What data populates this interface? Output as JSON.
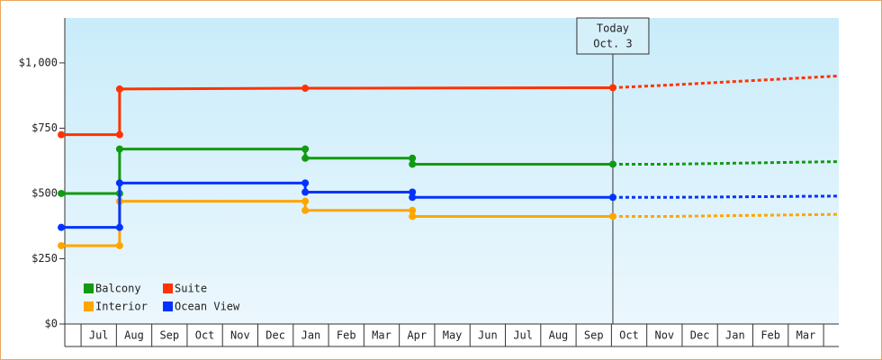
{
  "chart_data": {
    "type": "line",
    "step": true,
    "xlim": [
      -0.46,
      21.43
    ],
    "ylim": [
      0,
      1172
    ],
    "yticks": [
      {
        "value": 0,
        "label": "$0"
      },
      {
        "value": 250,
        "label": "$250"
      },
      {
        "value": 500,
        "label": "$500"
      },
      {
        "value": 750,
        "label": "$750"
      },
      {
        "value": 1000,
        "label": "$1,000"
      }
    ],
    "xticks": [
      {
        "value": 0.5,
        "label": "Jul"
      },
      {
        "value": 1.5,
        "label": "Aug"
      },
      {
        "value": 2.5,
        "label": "Sep"
      },
      {
        "value": 3.5,
        "label": "Oct"
      },
      {
        "value": 4.5,
        "label": "Nov"
      },
      {
        "value": 5.5,
        "label": "Dec"
      },
      {
        "value": 6.5,
        "label": "Jan"
      },
      {
        "value": 7.5,
        "label": "Feb"
      },
      {
        "value": 8.5,
        "label": "Mar"
      },
      {
        "value": 9.5,
        "label": "Apr"
      },
      {
        "value": 10.5,
        "label": "May"
      },
      {
        "value": 11.5,
        "label": "Jun"
      },
      {
        "value": 12.5,
        "label": "Jul"
      },
      {
        "value": 13.5,
        "label": "Aug"
      },
      {
        "value": 14.5,
        "label": "Sep"
      },
      {
        "value": 15.5,
        "label": "Oct"
      },
      {
        "value": 16.5,
        "label": "Nov"
      },
      {
        "value": 17.5,
        "label": "Dec"
      },
      {
        "value": 18.5,
        "label": "Jan"
      },
      {
        "value": 19.5,
        "label": "Feb"
      },
      {
        "value": 20.5,
        "label": "Mar"
      }
    ],
    "today": {
      "x": 15.04,
      "label": [
        "Today",
        "Oct. 3"
      ]
    },
    "series": [
      {
        "name": "Balcony",
        "color": "#129a12",
        "x": [
          -0.56,
          1.09,
          1.09,
          6.34,
          6.34,
          9.37,
          9.37,
          15.04
        ],
        "values": [
          500,
          500,
          670,
          670,
          635,
          635,
          612,
          612
        ],
        "projection": {
          "x": [
            15.04,
            16.6,
            21.43
          ],
          "values": [
            612,
            612,
            622
          ]
        }
      },
      {
        "name": "Suite",
        "color": "#ff3300",
        "x": [
          -0.56,
          1.09,
          1.09,
          6.34,
          15.04
        ],
        "values": [
          725,
          725,
          900,
          903,
          905
        ],
        "projection": {
          "x": [
            15.04,
            16.6,
            21.43
          ],
          "values": [
            905,
            915,
            950
          ]
        }
      },
      {
        "name": "Interior",
        "color": "#ffa500",
        "x": [
          -0.56,
          1.09,
          1.09,
          6.34,
          6.34,
          9.37,
          9.37,
          15.04
        ],
        "values": [
          300,
          300,
          470,
          470,
          435,
          435,
          412,
          412
        ],
        "projection": {
          "x": [
            15.04,
            16.6,
            21.43
          ],
          "values": [
            412,
            412,
            420
          ]
        }
      },
      {
        "name": "Ocean View",
        "color": "#0033ff",
        "x": [
          -0.56,
          1.09,
          1.09,
          6.34,
          6.34,
          9.37,
          9.37,
          15.04
        ],
        "values": [
          370,
          370,
          540,
          540,
          505,
          505,
          485,
          485
        ],
        "projection": {
          "x": [
            15.04,
            16.6,
            21.43
          ],
          "values": [
            485,
            485,
            490
          ]
        }
      }
    ]
  }
}
